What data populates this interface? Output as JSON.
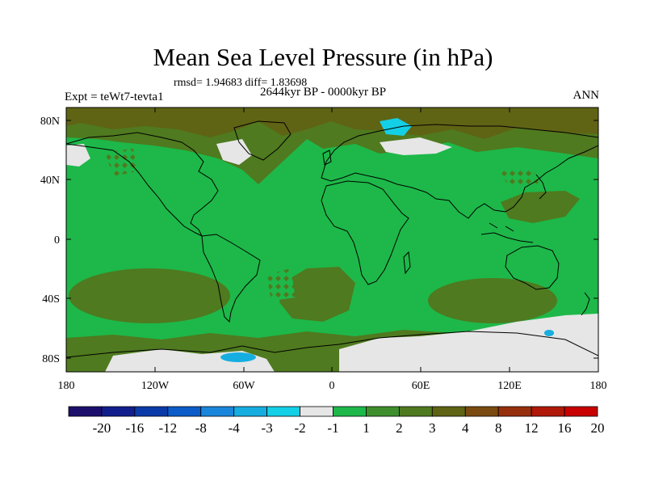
{
  "title": "Mean Sea Level Pressure (in hPa)",
  "stats": "rmsd= 1.94683 diff= 1.83698",
  "experiment": "Expt = teWt7-tevta1",
  "period": "2644kyr BP - 0000kyr BP",
  "season": "ANN",
  "map": {
    "lat_labels": [
      "80N",
      "40N",
      "0",
      "40S",
      "80S"
    ],
    "lon_labels": [
      "180",
      "120W",
      "60W",
      "0",
      "60E",
      "120E",
      "180"
    ]
  },
  "colorbar": {
    "colors": [
      "#1c0f6b",
      "#121e8c",
      "#0a3aa8",
      "#0b5cc8",
      "#1a86db",
      "#16aee0",
      "#14d0e6",
      "#e6e6e6",
      "#1db849",
      "#3e8f2c",
      "#4f7a1f",
      "#5f6314",
      "#7a4a10",
      "#96300c",
      "#b01808",
      "#c80000"
    ],
    "labels": [
      "-20",
      "-16",
      "-12",
      "-8",
      "-4",
      "-3",
      "-2",
      "-1",
      "1",
      "2",
      "3",
      "4",
      "8",
      "12",
      "16",
      "20"
    ]
  },
  "palette": {
    "white": "#e6e6e6",
    "green": "#1db849",
    "olive": "#4f7a1f",
    "brown": "#5f6314",
    "cyan": "#14d0e6",
    "lightblue": "#16aee0"
  }
}
